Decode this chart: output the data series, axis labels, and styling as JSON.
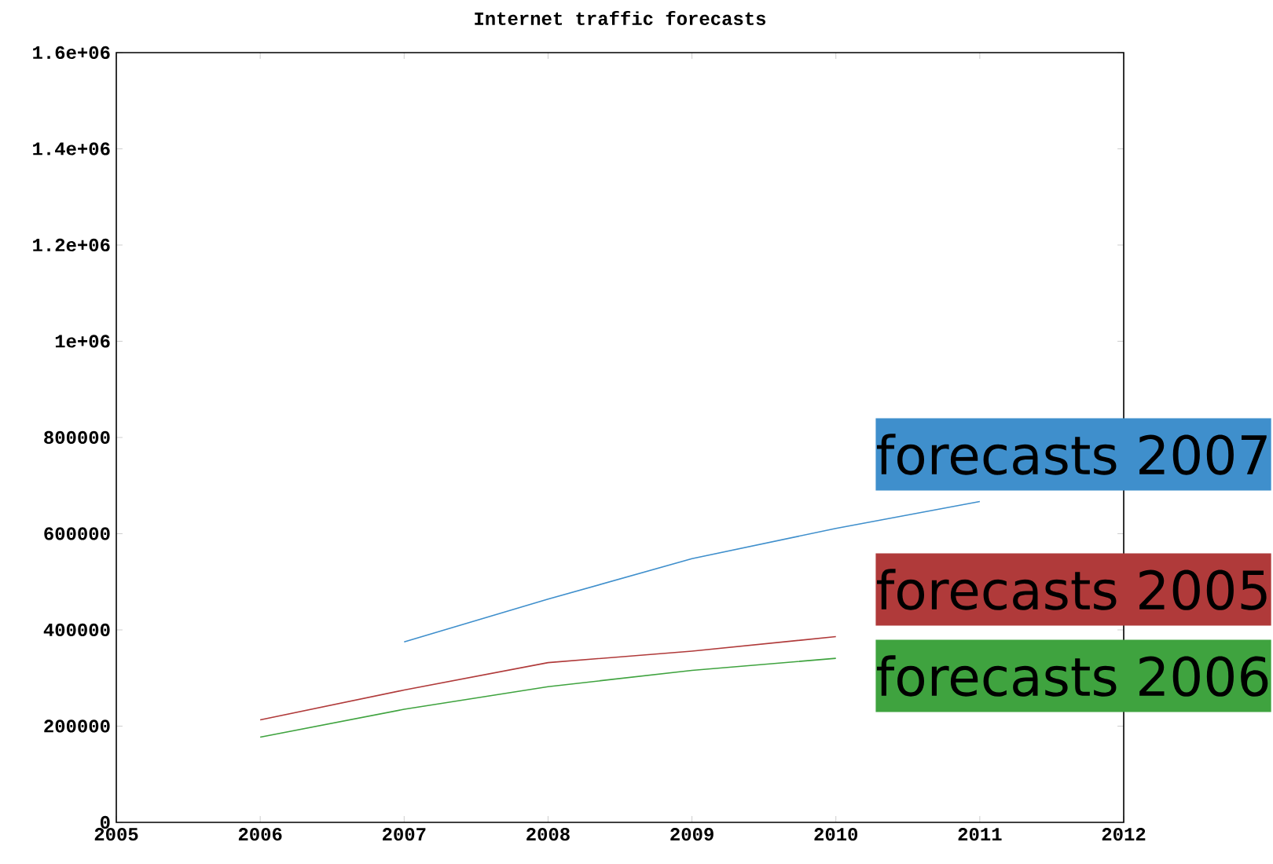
{
  "chart_data": {
    "type": "line",
    "title": "Internet traffic forecasts",
    "xlim": [
      2005,
      2012
    ],
    "xticks": [
      2005,
      2006,
      2007,
      2008,
      2009,
      2010,
      2011,
      2012
    ],
    "ylim": [
      0,
      1600000
    ],
    "yticks": [
      {
        "value": 0,
        "label": "0"
      },
      {
        "value": 200000,
        "label": "200000"
      },
      {
        "value": 400000,
        "label": "400000"
      },
      {
        "value": 600000,
        "label": "600000"
      },
      {
        "value": 800000,
        "label": "800000"
      },
      {
        "value": 1000000,
        "label": "1e+06"
      },
      {
        "value": 1200000,
        "label": "1.2e+06"
      },
      {
        "value": 1400000,
        "label": "1.4e+06"
      },
      {
        "value": 1600000,
        "label": "1.6e+06"
      }
    ],
    "grid": false,
    "marker": "none",
    "line_style": "solid",
    "series": [
      {
        "name": "forecasts 2005",
        "color": "#b03a3a",
        "x": [
          2006,
          2007,
          2008,
          2009,
          2010
        ],
        "values": [
          213000,
          275000,
          332000,
          356000,
          386000
        ]
      },
      {
        "name": "forecasts 2006",
        "color": "#3fa33f",
        "x": [
          2006,
          2007,
          2008,
          2009,
          2010
        ],
        "values": [
          177000,
          235000,
          282000,
          316000,
          341000
        ]
      },
      {
        "name": "forecasts 2007",
        "color": "#3f8fcc",
        "x": [
          2007,
          2008,
          2009,
          2010,
          2011
        ],
        "values": [
          375000,
          464000,
          548000,
          611000,
          667000
        ]
      }
    ]
  }
}
